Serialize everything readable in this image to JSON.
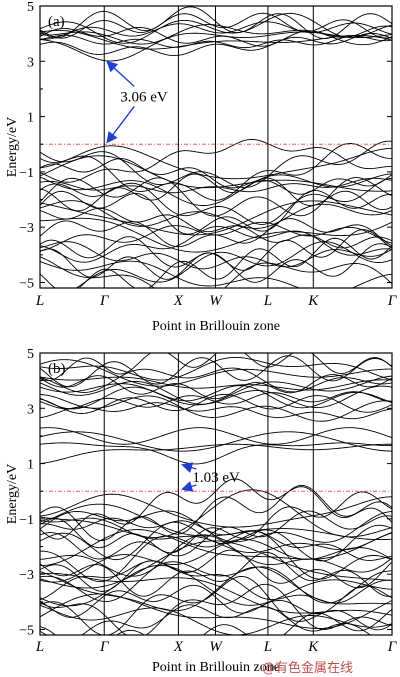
{
  "watermark": "@有色金属在线",
  "chart_data": [
    {
      "type": "line",
      "panel_label": "(a)",
      "ylabel": "Energy/eV",
      "xlabel": "Point in Brillouin zone",
      "ylim": [
        -5.2,
        5
      ],
      "yticks": [
        5,
        3,
        1,
        -1,
        -3,
        -5
      ],
      "kpoints": [
        {
          "label": "L",
          "italic": true,
          "x": 0.0
        },
        {
          "label": "Γ",
          "italic": true,
          "x": 0.866
        },
        {
          "label": "X",
          "italic": true,
          "x": 1.866
        },
        {
          "label": "W",
          "italic": true,
          "x": 2.366
        },
        {
          "label": "L",
          "italic": true,
          "x": 3.073
        },
        {
          "label": "K",
          "italic": true,
          "x": 3.685
        },
        {
          "label": "Γ",
          "italic": true,
          "x": 4.746
        }
      ],
      "fermi_level": 0,
      "annotation": {
        "text": "3.06 eV",
        "value": 3.06,
        "vbm": 0.0,
        "cbm": 3.06
      },
      "valence_range": [
        -5.2,
        0.0
      ],
      "conduction_range": [
        3.06,
        4.4
      ]
    },
    {
      "type": "line",
      "panel_label": "(b)",
      "ylabel": "Energy/eV",
      "xlabel": "Point in Brillouin zone",
      "ylim": [
        -5.2,
        5
      ],
      "yticks": [
        5,
        3,
        1,
        -1,
        -3,
        -5
      ],
      "kpoints": [
        {
          "label": "L",
          "italic": true,
          "x": 0.0
        },
        {
          "label": "Γ",
          "italic": true,
          "x": 0.866
        },
        {
          "label": "X",
          "italic": true,
          "x": 1.866
        },
        {
          "label": "W",
          "italic": true,
          "x": 2.366
        },
        {
          "label": "L",
          "italic": true,
          "x": 3.073
        },
        {
          "label": "K",
          "italic": true,
          "x": 3.685
        },
        {
          "label": "Γ",
          "italic": true,
          "x": 4.746
        }
      ],
      "fermi_level": 0,
      "annotation": {
        "text": "1.03 eV",
        "value": 1.03,
        "vbm": 0.0,
        "cbm": 1.03
      },
      "valence_range": [
        -5.2,
        -0.05
      ],
      "conduction_range": [
        1.03,
        4.9
      ]
    }
  ]
}
